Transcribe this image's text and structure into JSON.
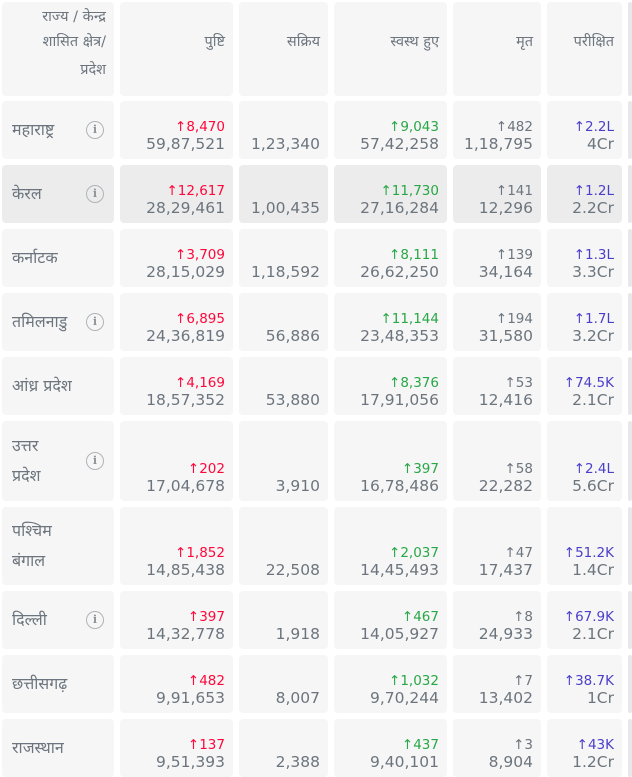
{
  "headers": {
    "state_lines": [
      "राज्य / केन्द्र",
      "शासित क्षेत्र/",
      "प्रदेश"
    ],
    "confirmed": "पुष्टि",
    "active": "सक्रिय",
    "recovered": "स्वस्थ हुए",
    "deceased": "मृत",
    "tested": "परीक्षित"
  },
  "info_icon": "i",
  "rows": [
    {
      "name_lines": [
        "महाराष्ट्र"
      ],
      "info": true,
      "confirmed_delta": "↑8,470",
      "confirmed": "59,87,521",
      "active": "1,23,340",
      "recovered_delta": "↑9,043",
      "recovered": "57,42,258",
      "deceased_delta": "↑482",
      "deceased": "1,18,795",
      "tested_delta": "↑2.2L",
      "tested": "4Cr"
    },
    {
      "name_lines": [
        "केरल"
      ],
      "info": true,
      "confirmed_delta": "↑12,617",
      "confirmed": "28,29,461",
      "active": "1,00,435",
      "recovered_delta": "↑11,730",
      "recovered": "27,16,284",
      "deceased_delta": "↑141",
      "deceased": "12,296",
      "tested_delta": "↑1.2L",
      "tested": "2.2Cr"
    },
    {
      "name_lines": [
        "कर्नाटक"
      ],
      "info": false,
      "confirmed_delta": "↑3,709",
      "confirmed": "28,15,029",
      "active": "1,18,592",
      "recovered_delta": "↑8,111",
      "recovered": "26,62,250",
      "deceased_delta": "↑139",
      "deceased": "34,164",
      "tested_delta": "↑1.3L",
      "tested": "3.3Cr"
    },
    {
      "name_lines": [
        "तमिलनाडु"
      ],
      "info": true,
      "confirmed_delta": "↑6,895",
      "confirmed": "24,36,819",
      "active": "56,886",
      "recovered_delta": "↑11,144",
      "recovered": "23,48,353",
      "deceased_delta": "↑194",
      "deceased": "31,580",
      "tested_delta": "↑1.7L",
      "tested": "3.2Cr"
    },
    {
      "name_lines": [
        "आंध्र प्रदेश"
      ],
      "info": false,
      "confirmed_delta": "↑4,169",
      "confirmed": "18,57,352",
      "active": "53,880",
      "recovered_delta": "↑8,376",
      "recovered": "17,91,056",
      "deceased_delta": "↑53",
      "deceased": "12,416",
      "tested_delta": "↑74.5K",
      "tested": "2.1Cr"
    },
    {
      "name_lines": [
        "उत्तर",
        "प्रदेश"
      ],
      "info": true,
      "confirmed_delta": "↑202",
      "confirmed": "17,04,678",
      "active": "3,910",
      "recovered_delta": "↑397",
      "recovered": "16,78,486",
      "deceased_delta": "↑58",
      "deceased": "22,282",
      "tested_delta": "↑2.4L",
      "tested": "5.6Cr"
    },
    {
      "name_lines": [
        "पश्चिम",
        "बंगाल"
      ],
      "info": false,
      "confirmed_delta": "↑1,852",
      "confirmed": "14,85,438",
      "active": "22,508",
      "recovered_delta": "↑2,037",
      "recovered": "14,45,493",
      "deceased_delta": "↑47",
      "deceased": "17,437",
      "tested_delta": "↑51.2K",
      "tested": "1.4Cr"
    },
    {
      "name_lines": [
        "दिल्ली"
      ],
      "info": true,
      "confirmed_delta": "↑397",
      "confirmed": "14,32,778",
      "active": "1,918",
      "recovered_delta": "↑467",
      "recovered": "14,05,927",
      "deceased_delta": "↑8",
      "deceased": "24,933",
      "tested_delta": "↑67.9K",
      "tested": "2.1Cr"
    },
    {
      "name_lines": [
        "छत्तीसगढ़"
      ],
      "info": false,
      "confirmed_delta": "↑482",
      "confirmed": "9,91,653",
      "active": "8,007",
      "recovered_delta": "↑1,032",
      "recovered": "9,70,244",
      "deceased_delta": "↑7",
      "deceased": "13,402",
      "tested_delta": "↑38.7K",
      "tested": "1Cr"
    },
    {
      "name_lines": [
        "राजस्थान"
      ],
      "info": false,
      "confirmed_delta": "↑137",
      "confirmed": "9,51,393",
      "active": "2,388",
      "recovered_delta": "↑437",
      "recovered": "9,40,101",
      "deceased_delta": "↑3",
      "deceased": "8,904",
      "tested_delta": "↑43K",
      "tested": "1.2Cr"
    }
  ],
  "colors": {
    "confirmed_delta": "#ff073a",
    "recovered_delta": "#28a745",
    "deceased_delta": "#6c757d",
    "tested_delta": "#4b3fc8",
    "cell_bg": "#f6f6f7",
    "cell_bg_highlight": "#ececed"
  }
}
